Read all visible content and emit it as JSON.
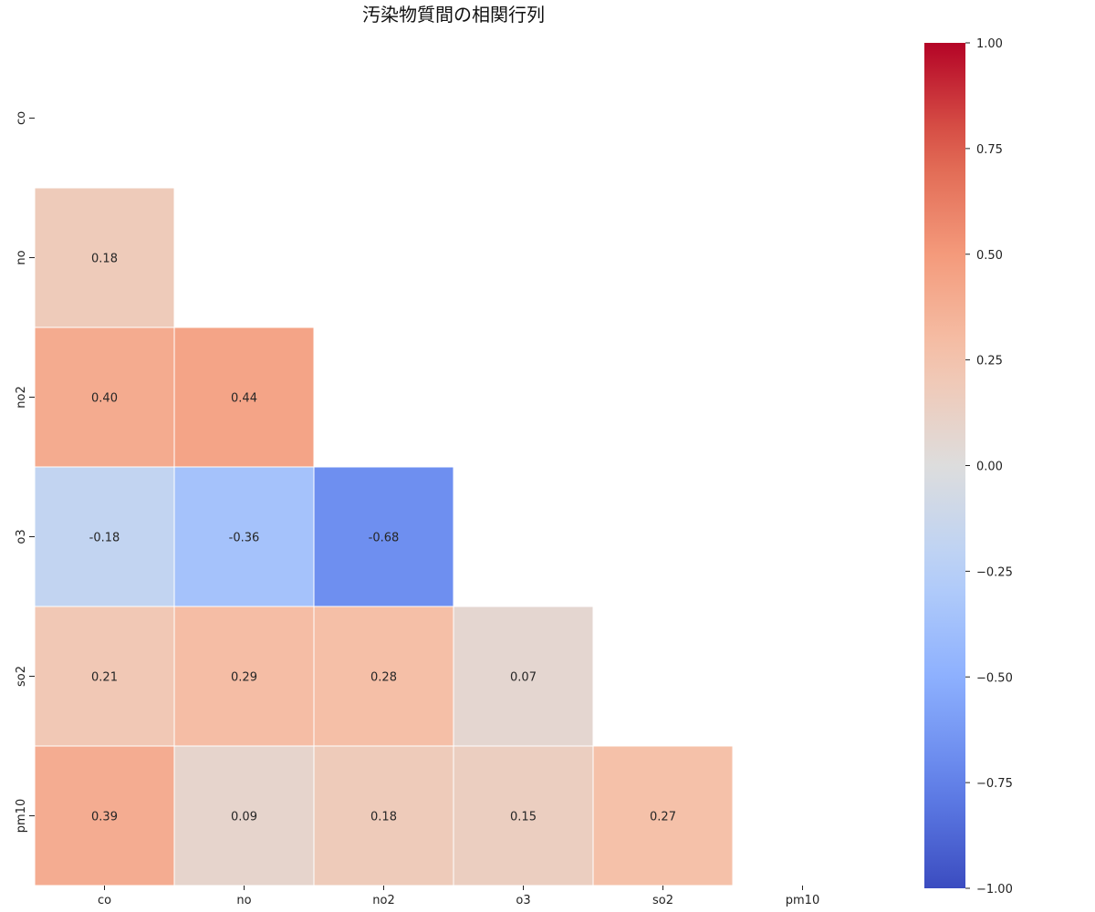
{
  "chart_data": {
    "type": "heatmap",
    "title": "汚染物質間の相関行列",
    "variables": [
      "co",
      "no",
      "no2",
      "o3",
      "so2",
      "pm10"
    ],
    "mask": "upper-triangle-including-diagonal",
    "lower_triangle_values": [
      {
        "row": "no",
        "col": "co",
        "value": 0.18
      },
      {
        "row": "no2",
        "col": "co",
        "value": 0.4
      },
      {
        "row": "no2",
        "col": "no",
        "value": 0.44
      },
      {
        "row": "o3",
        "col": "co",
        "value": -0.18
      },
      {
        "row": "o3",
        "col": "no",
        "value": -0.36
      },
      {
        "row": "o3",
        "col": "no2",
        "value": -0.68
      },
      {
        "row": "so2",
        "col": "co",
        "value": 0.21
      },
      {
        "row": "so2",
        "col": "no",
        "value": 0.29
      },
      {
        "row": "so2",
        "col": "no2",
        "value": 0.28
      },
      {
        "row": "so2",
        "col": "o3",
        "value": 0.07
      },
      {
        "row": "pm10",
        "col": "co",
        "value": 0.39
      },
      {
        "row": "pm10",
        "col": "no",
        "value": 0.09
      },
      {
        "row": "pm10",
        "col": "no2",
        "value": 0.18
      },
      {
        "row": "pm10",
        "col": "o3",
        "value": 0.15
      },
      {
        "row": "pm10",
        "col": "so2",
        "value": 0.27
      }
    ],
    "value_format": "0.00",
    "colormap": "coolwarm",
    "vmin": -1.0,
    "vmax": 1.0,
    "colorbar_ticks": [
      1.0,
      0.75,
      0.5,
      0.25,
      0.0,
      -0.25,
      -0.5,
      -0.75,
      -1.0
    ],
    "colorbar_tick_labels": [
      "1.00",
      "0.75",
      "0.50",
      "0.25",
      "0.00",
      "−0.25",
      "−0.50",
      "−0.75",
      "−1.00"
    ],
    "grid": false,
    "legend": "colorbar-right"
  }
}
